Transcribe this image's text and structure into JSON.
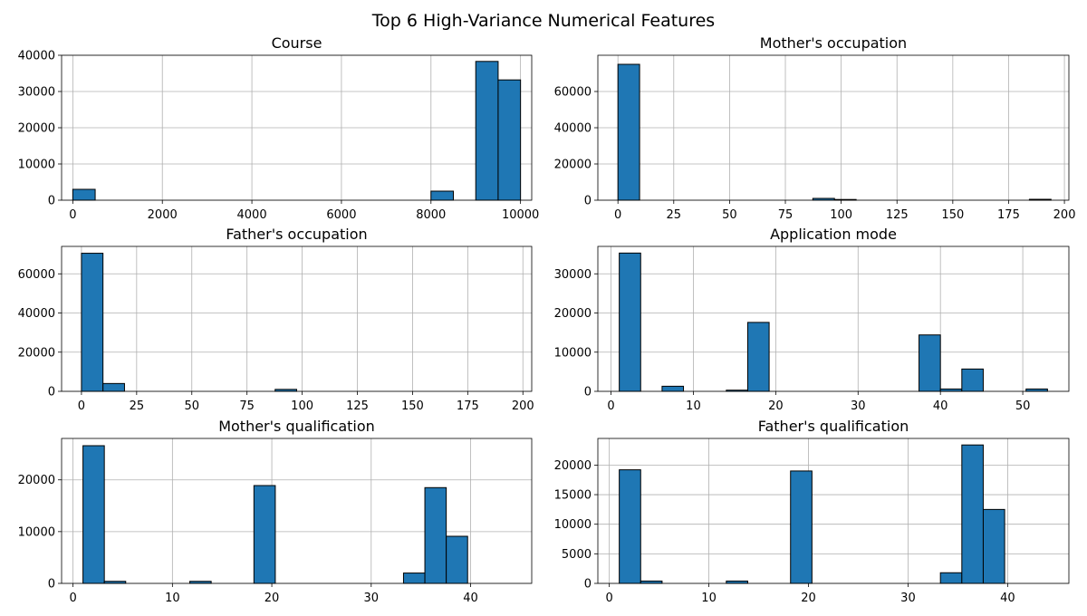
{
  "figure": {
    "title": "Top 6 High-Variance Numerical Features",
    "bar_color": "#1f77b4"
  },
  "chart_data": [
    {
      "type": "bar",
      "title": "Course",
      "xlim": [
        -250,
        10250
      ],
      "ylim": [
        0,
        40000
      ],
      "xticks": [
        0,
        2000,
        4000,
        6000,
        8000,
        10000
      ],
      "yticks": [
        0,
        10000,
        20000,
        30000,
        40000
      ],
      "bins": [
        {
          "x0": 0,
          "x1": 500,
          "count": 3000
        },
        {
          "x0": 8000,
          "x1": 8500,
          "count": 2500
        },
        {
          "x0": 9000,
          "x1": 9500,
          "count": 38300
        },
        {
          "x0": 9500,
          "x1": 10000,
          "count": 33200
        }
      ]
    },
    {
      "type": "bar",
      "title": "Mother's occupation",
      "xlim": [
        -9,
        202
      ],
      "ylim": [
        0,
        80000
      ],
      "xticks": [
        0,
        25,
        50,
        75,
        100,
        125,
        150,
        175,
        200
      ],
      "yticks": [
        0,
        20000,
        40000,
        60000
      ],
      "bins": [
        {
          "x0": 0,
          "x1": 9.7,
          "count": 75000
        },
        {
          "x0": 87.3,
          "x1": 97,
          "count": 1000
        },
        {
          "x0": 97,
          "x1": 106.7,
          "count": 400
        },
        {
          "x0": 184.3,
          "x1": 194,
          "count": 500
        }
      ]
    },
    {
      "type": "bar",
      "title": "Father's occupation",
      "xlim": [
        -9,
        204
      ],
      "ylim": [
        0,
        74000
      ],
      "xticks": [
        0,
        25,
        50,
        75,
        100,
        125,
        150,
        175,
        200
      ],
      "yticks": [
        0,
        20000,
        40000,
        60000
      ],
      "bins": [
        {
          "x0": 0,
          "x1": 9.75,
          "count": 70500
        },
        {
          "x0": 9.75,
          "x1": 19.5,
          "count": 4000
        },
        {
          "x0": 87.75,
          "x1": 97.5,
          "count": 1000
        }
      ]
    },
    {
      "type": "bar",
      "title": "Application mode",
      "xlim": [
        -1.6,
        55.6
      ],
      "ylim": [
        0,
        37000
      ],
      "xticks": [
        0,
        10,
        20,
        30,
        40,
        50
      ],
      "yticks": [
        0,
        10000,
        20000,
        30000
      ],
      "bins": [
        {
          "x0": 1,
          "x1": 3.6,
          "count": 35300
        },
        {
          "x0": 6.2,
          "x1": 8.8,
          "count": 1300
        },
        {
          "x0": 14,
          "x1": 16.6,
          "count": 300
        },
        {
          "x0": 16.6,
          "x1": 19.2,
          "count": 17600
        },
        {
          "x0": 37.4,
          "x1": 40,
          "count": 14400
        },
        {
          "x0": 40,
          "x1": 42.6,
          "count": 600
        },
        {
          "x0": 42.6,
          "x1": 45.2,
          "count": 5700
        },
        {
          "x0": 50.4,
          "x1": 53,
          "count": 600
        }
      ]
    },
    {
      "type": "bar",
      "title": "Mother's qualification",
      "xlim": [
        -1.15,
        46.15
      ],
      "ylim": [
        0,
        28000
      ],
      "xticks": [
        0,
        10,
        20,
        30,
        40
      ],
      "yticks": [
        0,
        10000,
        20000
      ],
      "bins": [
        {
          "x0": 1,
          "x1": 3.15,
          "count": 26600
        },
        {
          "x0": 3.15,
          "x1": 5.3,
          "count": 400
        },
        {
          "x0": 11.75,
          "x1": 13.9,
          "count": 400
        },
        {
          "x0": 18.2,
          "x1": 20.35,
          "count": 18900
        },
        {
          "x0": 33.25,
          "x1": 35.4,
          "count": 2000
        },
        {
          "x0": 35.4,
          "x1": 37.55,
          "count": 18500
        },
        {
          "x0": 37.55,
          "x1": 39.7,
          "count": 9100
        }
      ]
    },
    {
      "type": "bar",
      "title": "Father's qualification",
      "xlim": [
        -1.15,
        46.15
      ],
      "ylim": [
        0,
        24500
      ],
      "xticks": [
        0,
        10,
        20,
        30,
        40
      ],
      "yticks": [
        0,
        5000,
        10000,
        15000,
        20000
      ],
      "bins": [
        {
          "x0": 1,
          "x1": 3.15,
          "count": 19200
        },
        {
          "x0": 3.15,
          "x1": 5.3,
          "count": 400
        },
        {
          "x0": 11.75,
          "x1": 13.9,
          "count": 400
        },
        {
          "x0": 18.2,
          "x1": 20.35,
          "count": 19000
        },
        {
          "x0": 33.25,
          "x1": 35.4,
          "count": 1800
        },
        {
          "x0": 35.4,
          "x1": 37.55,
          "count": 23400
        },
        {
          "x0": 37.55,
          "x1": 39.7,
          "count": 12500
        }
      ]
    }
  ]
}
